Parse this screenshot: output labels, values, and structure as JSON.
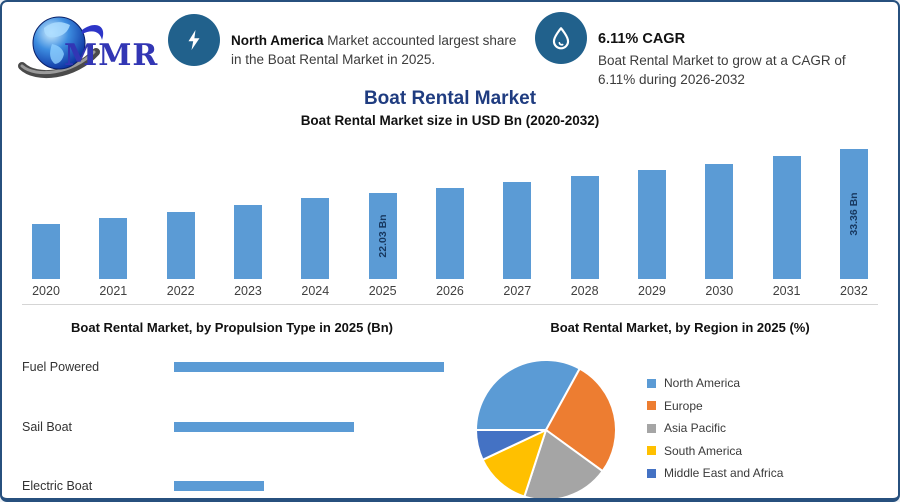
{
  "logo": {
    "text": "MMR"
  },
  "header": {
    "badge1": {
      "icon": "lightning-icon",
      "highlight": "North America",
      "text": "Market accounted largest share in the Boat Rental Market in 2025."
    },
    "badge2": {
      "icon": "droplet-icon",
      "title": "6.11% CAGR",
      "line1": "Boat Rental Market to grow at a CAGR of",
      "line2": "6.11% during 2026-2032"
    }
  },
  "colors": {
    "bar_blue": "#5B9BD5",
    "badge_circle": "#21618C",
    "title_navy": "#1F3C80",
    "frame_border": "#27507E",
    "bar_label_navy": "#17375E"
  },
  "chart_data": [
    {
      "type": "bar",
      "title": "Boat Rental Market",
      "subtitle": "Boat Rental Market size in USD Bn (2020-2032)",
      "categories": [
        "2020",
        "2021",
        "2022",
        "2023",
        "2024",
        "2025",
        "2026",
        "2027",
        "2028",
        "2029",
        "2030",
        "2031",
        "2032"
      ],
      "values": [
        14.0,
        15.7,
        17.3,
        18.9,
        20.7,
        22.03,
        23.38,
        24.8,
        26.32,
        27.93,
        29.63,
        31.44,
        33.36
      ],
      "unit": "USD Bn",
      "ylim": [
        0,
        34.5
      ],
      "grid": false,
      "bar_color": "#5B9BD5",
      "data_labels": {
        "2025": "22.03 Bn",
        "2032": "33.36 Bn"
      }
    },
    {
      "type": "bar",
      "orientation": "horizontal",
      "title": "Boat Rental Market, by Propulsion Type in 2025 (Bn)",
      "categories": [
        "Fuel Powered",
        "Sail Boat",
        "Electric Boat"
      ],
      "values": [
        12,
        8,
        4
      ],
      "values_note": "estimated from bar lengths (3:2:1 ratio), no numeric labels shown",
      "xlim": [
        0,
        12
      ],
      "grid": false,
      "bar_color": "#5B9BD5"
    },
    {
      "type": "pie",
      "title": "Boat Rental Market, by Region in 2025 (%)",
      "labels": [
        "North America",
        "Europe",
        "Asia Pacific",
        "South America",
        "Middle East and Africa"
      ],
      "values": [
        33,
        27,
        20,
        13,
        7
      ],
      "values_note": "estimated from slice angles, no numeric labels shown",
      "colors": [
        "#5B9BD5",
        "#ED7D31",
        "#A5A5A5",
        "#FFC000",
        "#4472C4"
      ],
      "start_angle_deg": 270,
      "legend_position": "right"
    }
  ]
}
